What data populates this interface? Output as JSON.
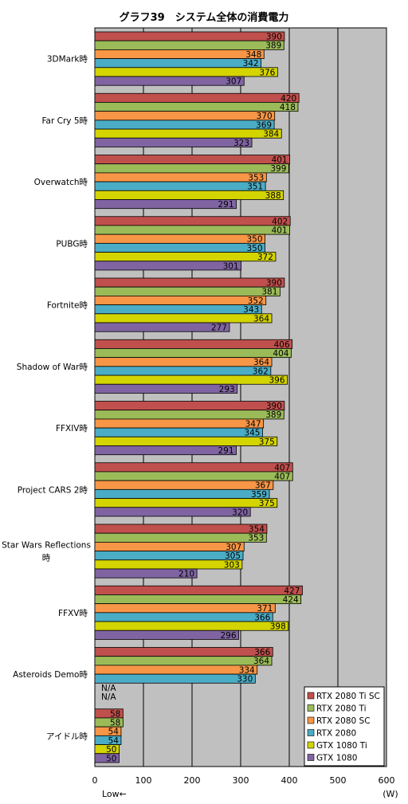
{
  "chart_data": {
    "type": "bar",
    "orientation": "horizontal",
    "title": "グラフ39　システム全体の消費電力",
    "unit_label": "(W)",
    "direction_note": "Low←",
    "xlim": [
      0,
      600
    ],
    "xticks": [
      0,
      100,
      200,
      300,
      400,
      500,
      600
    ],
    "grid": true,
    "legend_position": "bottom-right",
    "categories": [
      "3DMark時",
      "Far Cry 5時",
      "Overwatch時",
      "PUBG時",
      "Fortnite時",
      "Shadow of War時",
      "FFXIV時",
      "Project CARS 2時",
      "Star Wars Reflections時",
      "FFXV時",
      "Asteroids Demo時",
      "アイドル時"
    ],
    "category_lines": [
      [
        "3DMark時"
      ],
      [
        "Far Cry 5時"
      ],
      [
        "Overwatch時"
      ],
      [
        "PUBG時"
      ],
      [
        "Fortnite時"
      ],
      [
        "Shadow of War時"
      ],
      [
        "FFXIV時"
      ],
      [
        "Project CARS 2時"
      ],
      [
        "Star Wars Reflections",
        "時"
      ],
      [
        "FFXV時"
      ],
      [
        "Asteroids Demo時"
      ],
      [
        "アイドル時"
      ]
    ],
    "na_label": "N/A",
    "series": [
      {
        "name": "RTX 2080 Ti SC",
        "color": "#c0504d",
        "values": [
          390,
          420,
          401,
          402,
          390,
          406,
          390,
          407,
          354,
          427,
          366,
          58
        ]
      },
      {
        "name": "RTX 2080 Ti",
        "color": "#9bbb59",
        "values": [
          389,
          418,
          399,
          401,
          381,
          404,
          389,
          407,
          353,
          424,
          364,
          58
        ]
      },
      {
        "name": "RTX 2080 SC",
        "color": "#f79646",
        "values": [
          348,
          370,
          353,
          350,
          352,
          364,
          347,
          367,
          307,
          371,
          334,
          54
        ]
      },
      {
        "name": "RTX 2080",
        "color": "#4bacc6",
        "values": [
          342,
          369,
          351,
          350,
          343,
          362,
          345,
          359,
          305,
          366,
          330,
          54
        ]
      },
      {
        "name": "GTX 1080 Ti",
        "color": "#d4d400",
        "values": [
          376,
          384,
          388,
          372,
          364,
          396,
          375,
          375,
          303,
          398,
          null,
          50
        ]
      },
      {
        "name": "GTX 1080",
        "color": "#8064a2",
        "values": [
          307,
          323,
          291,
          301,
          277,
          293,
          291,
          320,
          210,
          296,
          null,
          50
        ]
      }
    ]
  }
}
